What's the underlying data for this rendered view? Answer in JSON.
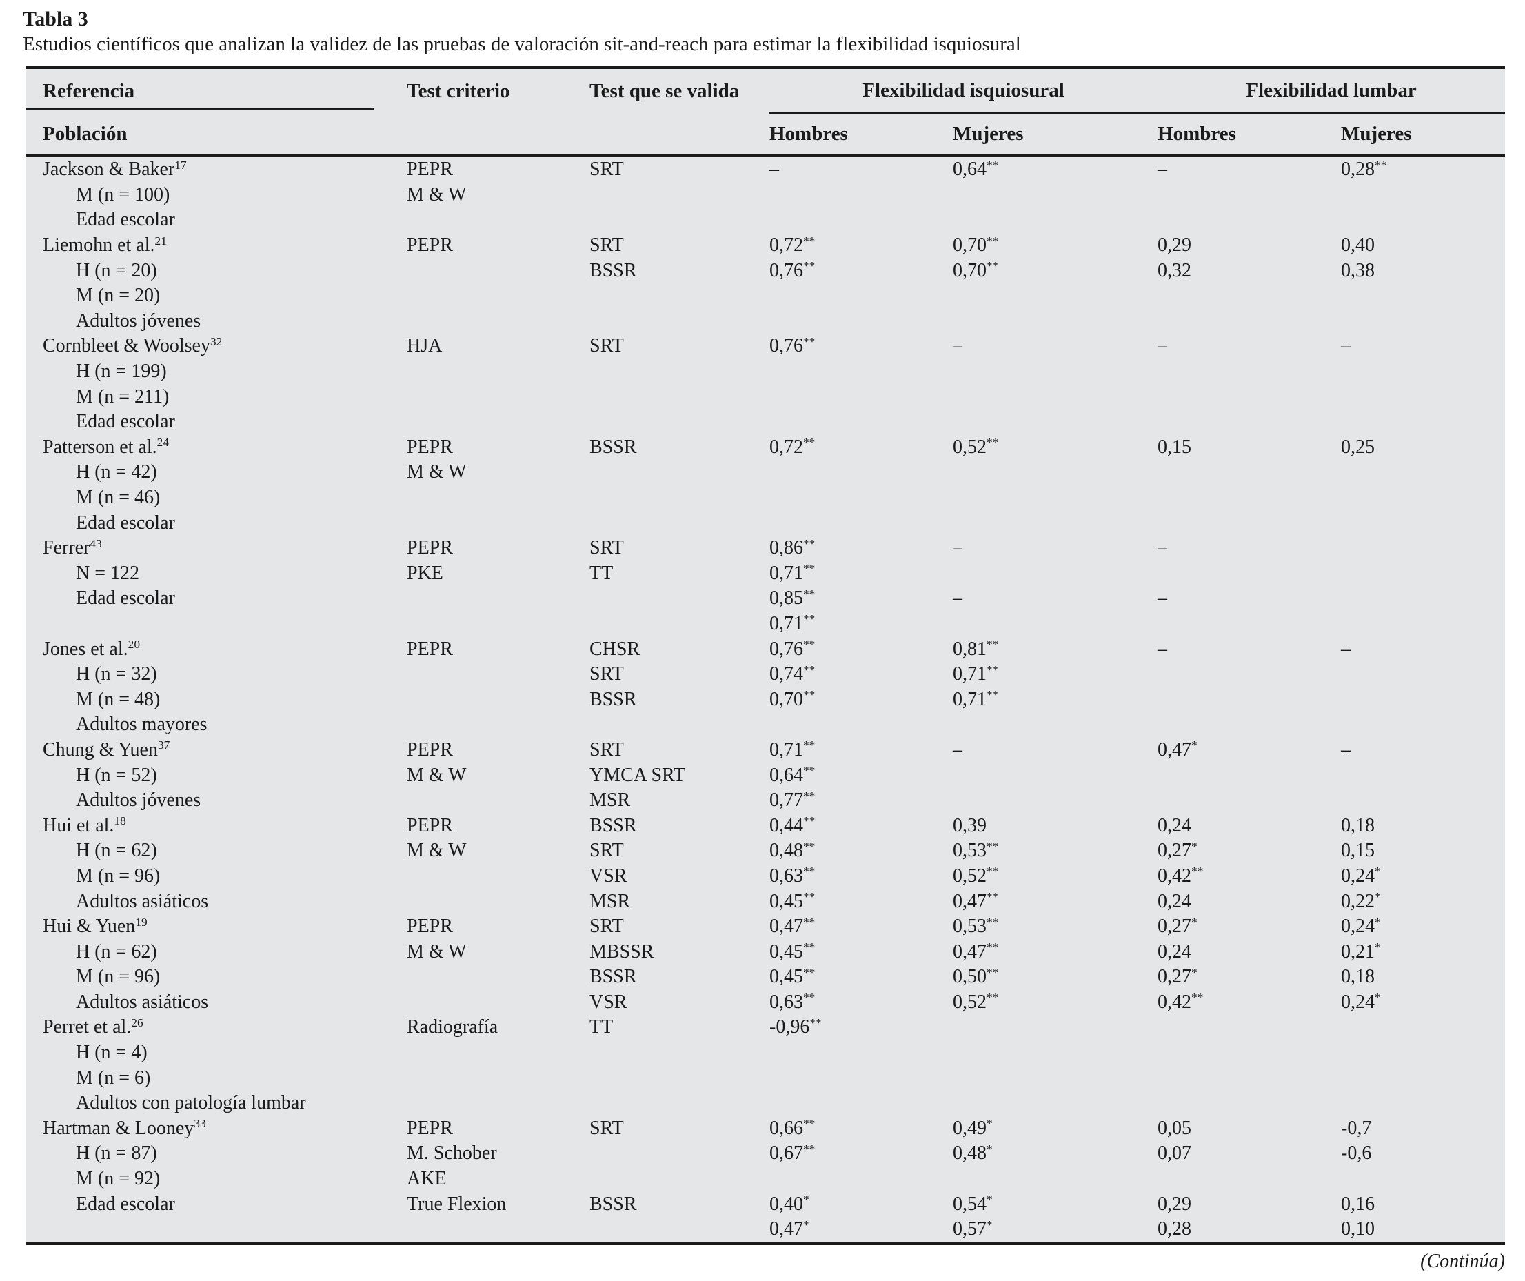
{
  "title": "Tabla 3",
  "subtitle": "Estudios científicos que analizan la validez de las pruebas de valoración sit-and-reach para estimar la flexibilidad isquiosural",
  "header": {
    "referencia": "Referencia",
    "poblacion": "Población",
    "test_criterio": "Test criterio",
    "test_valida": "Test que se valida",
    "grupo_isquiosural": "Flexibilidad isquiosural",
    "grupo_lumbar": "Flexibilidad lumbar",
    "hombres_isquiosural": "Hombres",
    "mujeres_isquiosural": "Mujeres",
    "hombres_lumbar": "Hombres",
    "mujeres_lumbar": "Mujeres"
  },
  "footer": {
    "continua": "(Continúa)"
  },
  "colors": {
    "table_bg": "#e5e6e7",
    "rule": "#1b1b1b",
    "text": "#1b1b1b"
  },
  "rows": [
    {
      "ref": "Jackson & Baker",
      "sup": "17",
      "indent": 0,
      "criterio": "PEPR",
      "valida": "SRT",
      "fi_h": "–",
      "fi_m": "0,64**",
      "fl_h": "–",
      "fl_m": "0,28**"
    },
    {
      "ref": "M (n = 100)",
      "sup": "",
      "indent": 1,
      "criterio": "M & W",
      "valida": "",
      "fi_h": "",
      "fi_m": "",
      "fl_h": "",
      "fl_m": ""
    },
    {
      "ref": "Edad escolar",
      "sup": "",
      "indent": 1,
      "criterio": "",
      "valida": "",
      "fi_h": "",
      "fi_m": "",
      "fl_h": "",
      "fl_m": ""
    },
    {
      "ref": "Liemohn et al.",
      "sup": "21",
      "indent": 0,
      "criterio": "PEPR",
      "valida": "SRT",
      "fi_h": "0,72**",
      "fi_m": "0,70**",
      "fl_h": "0,29",
      "fl_m": "0,40"
    },
    {
      "ref": "H (n = 20)",
      "sup": "",
      "indent": 1,
      "criterio": "",
      "valida": "BSSR",
      "fi_h": "0,76**",
      "fi_m": "0,70**",
      "fl_h": "0,32",
      "fl_m": "0,38"
    },
    {
      "ref": "M (n = 20)",
      "sup": "",
      "indent": 1,
      "criterio": "",
      "valida": "",
      "fi_h": "",
      "fi_m": "",
      "fl_h": "",
      "fl_m": ""
    },
    {
      "ref": "Adultos jóvenes",
      "sup": "",
      "indent": 1,
      "criterio": "",
      "valida": "",
      "fi_h": "",
      "fi_m": "",
      "fl_h": "",
      "fl_m": ""
    },
    {
      "ref": "Cornbleet & Woolsey",
      "sup": "32",
      "indent": 0,
      "criterio": "HJA",
      "valida": "SRT",
      "fi_h": "0,76**",
      "fi_m": "–",
      "fl_h": "–",
      "fl_m": "–"
    },
    {
      "ref": "H (n = 199)",
      "sup": "",
      "indent": 1,
      "criterio": "",
      "valida": "",
      "fi_h": "",
      "fi_m": "",
      "fl_h": "",
      "fl_m": ""
    },
    {
      "ref": "M (n = 211)",
      "sup": "",
      "indent": 1,
      "criterio": "",
      "valida": "",
      "fi_h": "",
      "fi_m": "",
      "fl_h": "",
      "fl_m": ""
    },
    {
      "ref": "Edad escolar",
      "sup": "",
      "indent": 1,
      "criterio": "",
      "valida": "",
      "fi_h": "",
      "fi_m": "",
      "fl_h": "",
      "fl_m": ""
    },
    {
      "ref": "Patterson et al.",
      "sup": "24",
      "indent": 0,
      "criterio": "PEPR",
      "valida": "BSSR",
      "fi_h": "0,72**",
      "fi_m": "0,52**",
      "fl_h": "0,15",
      "fl_m": "0,25"
    },
    {
      "ref": "H (n = 42)",
      "sup": "",
      "indent": 1,
      "criterio": "M & W",
      "valida": "",
      "fi_h": "",
      "fi_m": "",
      "fl_h": "",
      "fl_m": ""
    },
    {
      "ref": "M (n = 46)",
      "sup": "",
      "indent": 1,
      "criterio": "",
      "valida": "",
      "fi_h": "",
      "fi_m": "",
      "fl_h": "",
      "fl_m": ""
    },
    {
      "ref": "Edad escolar",
      "sup": "",
      "indent": 1,
      "criterio": "",
      "valida": "",
      "fi_h": "",
      "fi_m": "",
      "fl_h": "",
      "fl_m": ""
    },
    {
      "ref": "Ferrer",
      "sup": "43",
      "indent": 0,
      "criterio": "PEPR",
      "valida": "SRT",
      "fi_h": "0,86**",
      "fi_m": "–",
      "fl_h": "–",
      "fl_m": ""
    },
    {
      "ref": "N = 122",
      "sup": "",
      "indent": 1,
      "criterio": "PKE",
      "valida": "TT",
      "fi_h": "0,71**",
      "fi_m": "",
      "fl_h": "",
      "fl_m": ""
    },
    {
      "ref": "Edad escolar",
      "sup": "",
      "indent": 1,
      "criterio": "",
      "valida": "",
      "fi_h": "0,85**",
      "fi_m": "–",
      "fl_h": "–",
      "fl_m": ""
    },
    {
      "ref": "",
      "sup": "",
      "indent": 1,
      "criterio": "",
      "valida": "",
      "fi_h": "0,71**",
      "fi_m": "",
      "fl_h": "",
      "fl_m": ""
    },
    {
      "ref": "Jones et al.",
      "sup": "20",
      "indent": 0,
      "criterio": "PEPR",
      "valida": "CHSR",
      "fi_h": "0,76**",
      "fi_m": "0,81**",
      "fl_h": "–",
      "fl_m": "–"
    },
    {
      "ref": "H (n = 32)",
      "sup": "",
      "indent": 1,
      "criterio": "",
      "valida": "SRT",
      "fi_h": "0,74**",
      "fi_m": "0,71**",
      "fl_h": "",
      "fl_m": ""
    },
    {
      "ref": "M (n = 48)",
      "sup": "",
      "indent": 1,
      "criterio": "",
      "valida": "BSSR",
      "fi_h": "0,70**",
      "fi_m": "0,71**",
      "fl_h": "",
      "fl_m": ""
    },
    {
      "ref": "Adultos mayores",
      "sup": "",
      "indent": 1,
      "criterio": "",
      "valida": "",
      "fi_h": "",
      "fi_m": "",
      "fl_h": "",
      "fl_m": ""
    },
    {
      "ref": "Chung & Yuen",
      "sup": "37",
      "indent": 0,
      "criterio": "PEPR",
      "valida": "SRT",
      "fi_h": "0,71**",
      "fi_m": "–",
      "fl_h": "0,47*",
      "fl_m": "–"
    },
    {
      "ref": "H (n = 52)",
      "sup": "",
      "indent": 1,
      "criterio": "M & W",
      "valida": "YMCA SRT",
      "fi_h": "0,64**",
      "fi_m": "",
      "fl_h": "",
      "fl_m": ""
    },
    {
      "ref": "Adultos jóvenes",
      "sup": "",
      "indent": 1,
      "criterio": "",
      "valida": "MSR",
      "fi_h": "0,77**",
      "fi_m": "",
      "fl_h": "",
      "fl_m": ""
    },
    {
      "ref": "Hui et al.",
      "sup": "18",
      "indent": 0,
      "criterio": "PEPR",
      "valida": "BSSR",
      "fi_h": "0,44**",
      "fi_m": "0,39",
      "fl_h": "0,24",
      "fl_m": "0,18"
    },
    {
      "ref": "H (n = 62)",
      "sup": "",
      "indent": 1,
      "criterio": "M & W",
      "valida": "SRT",
      "fi_h": "0,48**",
      "fi_m": "0,53**",
      "fl_h": "0,27*",
      "fl_m": "0,15"
    },
    {
      "ref": "M (n = 96)",
      "sup": "",
      "indent": 1,
      "criterio": "",
      "valida": "VSR",
      "fi_h": "0,63**",
      "fi_m": "0,52**",
      "fl_h": "0,42**",
      "fl_m": "0,24*"
    },
    {
      "ref": "Adultos asiáticos",
      "sup": "",
      "indent": 1,
      "criterio": "",
      "valida": "MSR",
      "fi_h": "0,45**",
      "fi_m": "0,47**",
      "fl_h": "0,24",
      "fl_m": "0,22*"
    },
    {
      "ref": "Hui & Yuen",
      "sup": "19",
      "indent": 0,
      "criterio": "PEPR",
      "valida": "SRT",
      "fi_h": "0,47**",
      "fi_m": "0,53**",
      "fl_h": "0,27*",
      "fl_m": "0,24*"
    },
    {
      "ref": "H (n = 62)",
      "sup": "",
      "indent": 1,
      "criterio": "M & W",
      "valida": "MBSSR",
      "fi_h": "0,45**",
      "fi_m": "0,47**",
      "fl_h": "0,24",
      "fl_m": "0,21*"
    },
    {
      "ref": "M (n = 96)",
      "sup": "",
      "indent": 1,
      "criterio": "",
      "valida": "BSSR",
      "fi_h": "0,45**",
      "fi_m": "0,50**",
      "fl_h": "0,27*",
      "fl_m": "0,18"
    },
    {
      "ref": "Adultos asiáticos",
      "sup": "",
      "indent": 1,
      "criterio": "",
      "valida": "VSR",
      "fi_h": "0,63**",
      "fi_m": "0,52**",
      "fl_h": "0,42**",
      "fl_m": "0,24*"
    },
    {
      "ref": "Perret et al.",
      "sup": "26",
      "indent": 0,
      "criterio": "Radiografía",
      "valida": "TT",
      "fi_h": "-0,96**",
      "fi_m": "",
      "fl_h": "",
      "fl_m": ""
    },
    {
      "ref": "H (n = 4)",
      "sup": "",
      "indent": 1,
      "criterio": "",
      "valida": "",
      "fi_h": "",
      "fi_m": "",
      "fl_h": "",
      "fl_m": ""
    },
    {
      "ref": "M (n = 6)",
      "sup": "",
      "indent": 1,
      "criterio": "",
      "valida": "",
      "fi_h": "",
      "fi_m": "",
      "fl_h": "",
      "fl_m": ""
    },
    {
      "ref": "Adultos con patología lumbar",
      "sup": "",
      "indent": 1,
      "criterio": "",
      "valida": "",
      "fi_h": "",
      "fi_m": "",
      "fl_h": "",
      "fl_m": ""
    },
    {
      "ref": "Hartman & Looney",
      "sup": "33",
      "indent": 0,
      "criterio": "PEPR",
      "valida": "SRT",
      "fi_h": "0,66**",
      "fi_m": "0,49*",
      "fl_h": "0,05",
      "fl_m": "-0,7"
    },
    {
      "ref": "H (n = 87)",
      "sup": "",
      "indent": 1,
      "criterio": "M. Schober",
      "valida": "",
      "fi_h": "0,67**",
      "fi_m": "0,48*",
      "fl_h": "0,07",
      "fl_m": "-0,6"
    },
    {
      "ref": "M (n = 92)",
      "sup": "",
      "indent": 1,
      "criterio": "AKE",
      "valida": "",
      "fi_h": "",
      "fi_m": "",
      "fl_h": "",
      "fl_m": ""
    },
    {
      "ref": "Edad escolar",
      "sup": "",
      "indent": 1,
      "criterio": "True Flexion",
      "valida": "BSSR",
      "fi_h": "0,40*",
      "fi_m": "0,54*",
      "fl_h": "0,29",
      "fl_m": "0,16"
    },
    {
      "ref": "",
      "sup": "",
      "indent": 1,
      "criterio": "",
      "valida": "",
      "fi_h": "0,47*",
      "fi_m": "0,57*",
      "fl_h": "0,28",
      "fl_m": "0,10"
    }
  ]
}
